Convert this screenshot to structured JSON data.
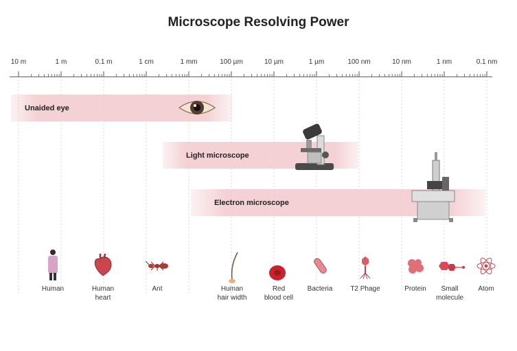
{
  "title": "Microscope Resolving Power",
  "scale": {
    "ticks": [
      "10 m",
      "1 m",
      "0.1 m",
      "1 cm",
      "1 mm",
      "100 µm",
      "10 µm",
      "1 µm",
      "100 nm",
      "10 nm",
      "1 nm",
      "0.1 nm"
    ]
  },
  "ranges": [
    {
      "label": "Unaided eye",
      "from": "10 m",
      "to": "100 µm",
      "icon": "eye-icon"
    },
    {
      "label": "Light microscope",
      "from": "1 mm",
      "to": "100 nm",
      "icon": "light-microscope-icon"
    },
    {
      "label": "Electron microscope",
      "from": "1 mm",
      "to": "0.1 nm",
      "icon": "electron-microscope-icon"
    }
  ],
  "objects": [
    {
      "lines": [
        "Human"
      ],
      "icon": "human-icon"
    },
    {
      "lines": [
        "Human",
        "heart"
      ],
      "icon": "heart-icon"
    },
    {
      "lines": [
        "Ant"
      ],
      "icon": "ant-icon"
    },
    {
      "lines": [
        "Human",
        "hair width"
      ],
      "icon": "hair-icon"
    },
    {
      "lines": [
        "Red",
        "blood cell"
      ],
      "icon": "red-blood-cell-icon"
    },
    {
      "lines": [
        "Bacteria"
      ],
      "icon": "bacteria-icon"
    },
    {
      "lines": [
        "T2 Phage"
      ],
      "icon": "phage-icon"
    },
    {
      "lines": [
        "Protein"
      ],
      "icon": "protein-icon"
    },
    {
      "lines": [
        "Small",
        "molecule"
      ],
      "icon": "small-molecule-icon"
    },
    {
      "lines": [
        "Atom"
      ],
      "icon": "atom-icon"
    }
  ],
  "colors": {
    "range_band": "#f2c9cc",
    "axis": "#555555",
    "guide": "#cccccc",
    "accent": "#c8454f"
  }
}
